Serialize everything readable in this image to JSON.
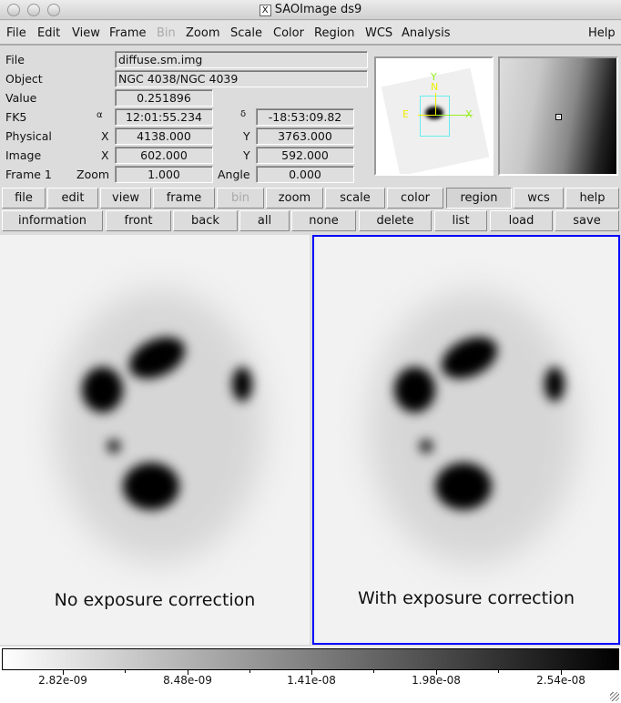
{
  "window": {
    "title": "SAOImage ds9",
    "x_icon": "X"
  },
  "menu": [
    "File",
    "Edit",
    "View",
    "Frame",
    "Bin",
    "Zoom",
    "Scale",
    "Color",
    "Region",
    "WCS",
    "Analysis",
    "Help"
  ],
  "info": {
    "file_label": "File",
    "file": "diffuse.sm.img",
    "object_label": "Object",
    "object": "NGC 4038/NGC 4039",
    "value_label": "Value",
    "value": "0.251896",
    "fk5_label": "FK5",
    "alpha_sym": "α",
    "ra": "12:01:55.234",
    "delta_sym": "δ",
    "dec": "-18:53:09.82",
    "physical_label": "Physical",
    "px_label": "X",
    "physical_x": "4138.000",
    "py_label": "Y",
    "physical_y": "3763.000",
    "image_label": "Image",
    "ix_label": "X",
    "image_x": "602.000",
    "iy_label": "Y",
    "image_y": "592.000",
    "frame_label": "Frame 1",
    "zoom_label": "Zoom",
    "zoom": "1.000",
    "angle_label": "Angle",
    "angle": "0.000"
  },
  "panner": {
    "y": "Y",
    "n": "N",
    "e": "E",
    "x": "X"
  },
  "buttons_top": [
    "file",
    "edit",
    "view",
    "frame",
    "bin",
    "zoom",
    "scale",
    "color",
    "region",
    "wcs",
    "help"
  ],
  "buttons_bottom": [
    "information",
    "front",
    "back",
    "all",
    "none",
    "delete",
    "list",
    "load",
    "save"
  ],
  "frames": [
    {
      "caption": "No exposure correction"
    },
    {
      "caption": "With exposure correction",
      "active_border": "#0000ff"
    }
  ],
  "colorbar": {
    "ticks": [
      "2.82e-09",
      "8.48e-09",
      "1.41e-08",
      "1.98e-08",
      "2.54e-08"
    ]
  }
}
